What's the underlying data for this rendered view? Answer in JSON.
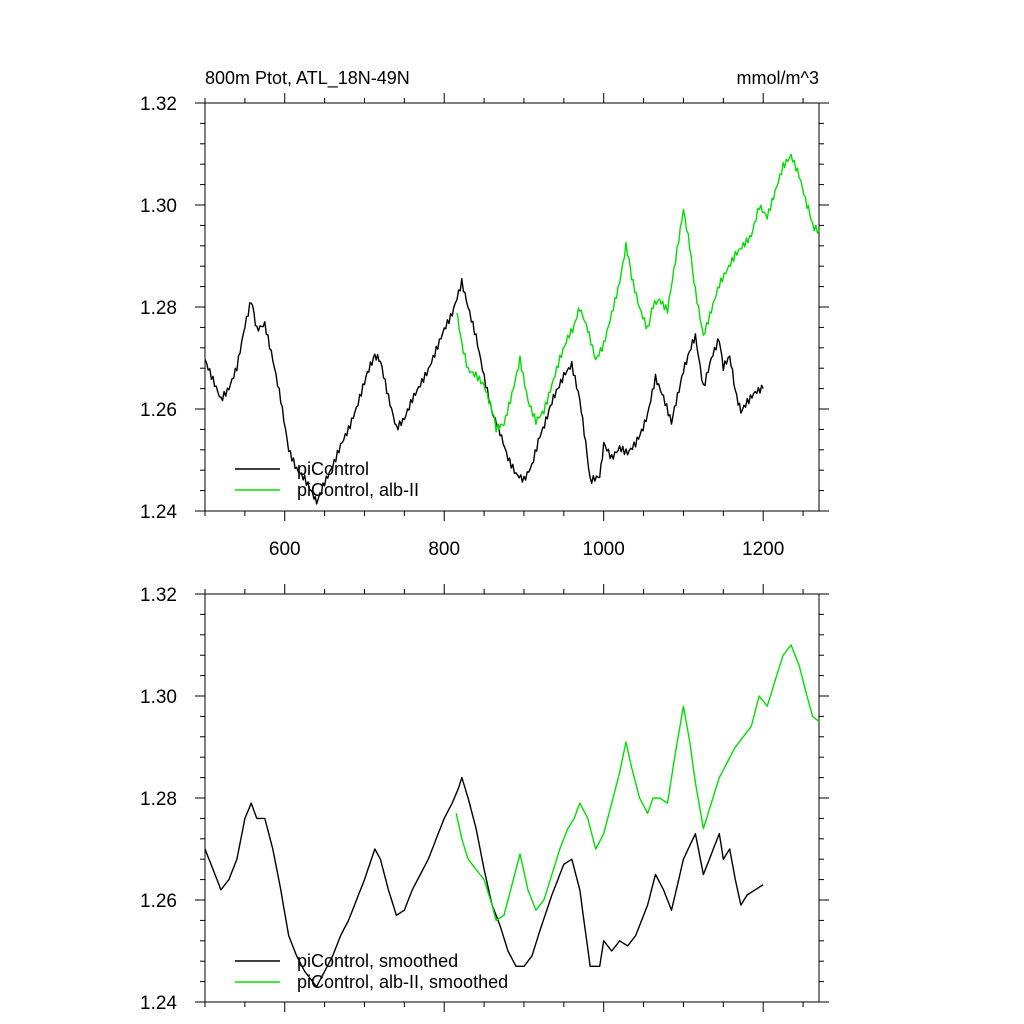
{
  "chart_data": [
    {
      "type": "line",
      "title": "800m Ptot, ATL_18N-49N",
      "units": "mmol/m^3",
      "xlim": [
        500,
        1270
      ],
      "ylim": [
        1.24,
        1.32
      ],
      "xticks": [
        600,
        800,
        1000,
        1200
      ],
      "xtick_labels": [
        "600",
        "800",
        "1000",
        "1200"
      ],
      "yticks": [
        1.24,
        1.26,
        1.28,
        1.3,
        1.32
      ],
      "ytick_labels": [
        "1.24",
        "1.26",
        "1.28",
        "1.30",
        "1.32"
      ],
      "legend": [
        "piControl",
        "piControl, alb-II"
      ],
      "legend_location": "lower-left",
      "series": [
        {
          "name": "piControl",
          "color": "#000000",
          "x": [
            500,
            510,
            520,
            530,
            540,
            550,
            558,
            565,
            575,
            585,
            595,
            605,
            615,
            625,
            635,
            640,
            650,
            660,
            670,
            680,
            690,
            700,
            713,
            720,
            730,
            740,
            750,
            760,
            770,
            780,
            790,
            800,
            810,
            818,
            822,
            830,
            840,
            850,
            860,
            870,
            880,
            890,
            900,
            910,
            920,
            935,
            950,
            960,
            970,
            983,
            995,
            1000,
            1010,
            1020,
            1030,
            1040,
            1055,
            1065,
            1075,
            1085,
            1100,
            1115,
            1125,
            1135,
            1145,
            1150,
            1158,
            1165,
            1172,
            1180,
            1190,
            1200
          ],
          "values": [
            1.27,
            1.266,
            1.262,
            1.264,
            1.268,
            1.276,
            1.281,
            1.276,
            1.277,
            1.27,
            1.262,
            1.252,
            1.248,
            1.246,
            1.243,
            1.242,
            1.246,
            1.249,
            1.253,
            1.256,
            1.26,
            1.265,
            1.271,
            1.269,
            1.262,
            1.256,
            1.258,
            1.262,
            1.265,
            1.268,
            1.272,
            1.276,
            1.279,
            1.283,
            1.285,
            1.28,
            1.274,
            1.266,
            1.259,
            1.255,
            1.25,
            1.247,
            1.246,
            1.249,
            1.255,
            1.261,
            1.267,
            1.269,
            1.262,
            1.246,
            1.247,
            1.253,
            1.25,
            1.252,
            1.251,
            1.253,
            1.259,
            1.266,
            1.262,
            1.257,
            1.268,
            1.274,
            1.264,
            1.27,
            1.274,
            1.268,
            1.27,
            1.264,
            1.259,
            1.261,
            1.263,
            1.264
          ]
        },
        {
          "name": "piControl, alb-II",
          "color": "#00e000",
          "x": [
            815,
            822,
            830,
            840,
            850,
            860,
            865,
            875,
            885,
            895,
            905,
            915,
            925,
            935,
            945,
            955,
            963,
            970,
            980,
            990,
            1000,
            1010,
            1020,
            1028,
            1035,
            1045,
            1055,
            1062,
            1070,
            1080,
            1090,
            1100,
            1108,
            1115,
            1125,
            1135,
            1145,
            1155,
            1165,
            1175,
            1185,
            1195,
            1205,
            1215,
            1225,
            1235,
            1245,
            1255,
            1262,
            1270
          ],
          "values": [
            1.279,
            1.273,
            1.268,
            1.267,
            1.265,
            1.26,
            1.256,
            1.257,
            1.263,
            1.27,
            1.262,
            1.258,
            1.26,
            1.265,
            1.27,
            1.274,
            1.276,
            1.28,
            1.276,
            1.27,
            1.273,
            1.279,
            1.285,
            1.292,
            1.286,
            1.28,
            1.276,
            1.28,
            1.281,
            1.279,
            1.289,
            1.299,
            1.292,
            1.283,
            1.274,
            1.279,
            1.284,
            1.287,
            1.29,
            1.292,
            1.294,
            1.3,
            1.298,
            1.303,
            1.308,
            1.31,
            1.306,
            1.3,
            1.296,
            1.295
          ]
        }
      ]
    },
    {
      "type": "line",
      "title": "",
      "xlim": [
        500,
        1270
      ],
      "ylim": [
        1.24,
        1.32
      ],
      "xticks": [
        600,
        800,
        1000,
        1200
      ],
      "yticks": [
        1.24,
        1.26,
        1.28,
        1.3,
        1.32
      ],
      "ytick_labels": [
        "1.24",
        "1.26",
        "1.28",
        "1.30",
        "1.32"
      ],
      "legend": [
        "piControl, smoothed",
        "piControl, alb-II, smoothed"
      ],
      "legend_location": "lower-left",
      "series": [
        {
          "name": "piControl, smoothed",
          "color": "#000000",
          "x": [
            500,
            510,
            520,
            530,
            540,
            550,
            558,
            565,
            575,
            585,
            595,
            605,
            615,
            625,
            635,
            640,
            650,
            660,
            670,
            680,
            690,
            700,
            713,
            720,
            730,
            740,
            750,
            760,
            770,
            780,
            790,
            800,
            810,
            818,
            822,
            830,
            840,
            850,
            860,
            870,
            880,
            890,
            900,
            910,
            920,
            935,
            950,
            960,
            970,
            983,
            995,
            1000,
            1010,
            1020,
            1030,
            1040,
            1055,
            1065,
            1075,
            1085,
            1100,
            1115,
            1125,
            1135,
            1145,
            1150,
            1158,
            1165,
            1172,
            1180,
            1190,
            1200
          ],
          "values": [
            1.27,
            1.266,
            1.262,
            1.264,
            1.268,
            1.276,
            1.279,
            1.276,
            1.276,
            1.27,
            1.262,
            1.253,
            1.249,
            1.246,
            1.244,
            1.243,
            1.246,
            1.249,
            1.253,
            1.256,
            1.26,
            1.264,
            1.27,
            1.268,
            1.262,
            1.257,
            1.258,
            1.262,
            1.265,
            1.268,
            1.272,
            1.276,
            1.279,
            1.282,
            1.284,
            1.28,
            1.274,
            1.266,
            1.259,
            1.255,
            1.25,
            1.247,
            1.247,
            1.249,
            1.254,
            1.261,
            1.267,
            1.268,
            1.262,
            1.247,
            1.247,
            1.252,
            1.25,
            1.252,
            1.251,
            1.253,
            1.259,
            1.265,
            1.262,
            1.258,
            1.268,
            1.273,
            1.265,
            1.269,
            1.273,
            1.268,
            1.27,
            1.264,
            1.259,
            1.261,
            1.262,
            1.263
          ]
        },
        {
          "name": "piControl, alb-II, smoothed",
          "color": "#00e000",
          "x": [
            815,
            822,
            830,
            840,
            850,
            860,
            865,
            875,
            885,
            895,
            905,
            915,
            925,
            935,
            945,
            955,
            963,
            970,
            980,
            990,
            1000,
            1010,
            1020,
            1028,
            1035,
            1045,
            1055,
            1062,
            1070,
            1080,
            1090,
            1100,
            1108,
            1115,
            1125,
            1135,
            1145,
            1155,
            1165,
            1175,
            1185,
            1195,
            1205,
            1215,
            1225,
            1235,
            1245,
            1255,
            1262,
            1270
          ],
          "values": [
            1.277,
            1.272,
            1.268,
            1.266,
            1.264,
            1.259,
            1.256,
            1.257,
            1.263,
            1.269,
            1.262,
            1.258,
            1.26,
            1.265,
            1.27,
            1.274,
            1.276,
            1.279,
            1.276,
            1.27,
            1.273,
            1.279,
            1.285,
            1.291,
            1.286,
            1.28,
            1.277,
            1.28,
            1.28,
            1.279,
            1.289,
            1.298,
            1.291,
            1.283,
            1.274,
            1.279,
            1.284,
            1.287,
            1.29,
            1.292,
            1.294,
            1.3,
            1.298,
            1.303,
            1.308,
            1.31,
            1.306,
            1.3,
            1.296,
            1.295
          ]
        }
      ]
    }
  ]
}
